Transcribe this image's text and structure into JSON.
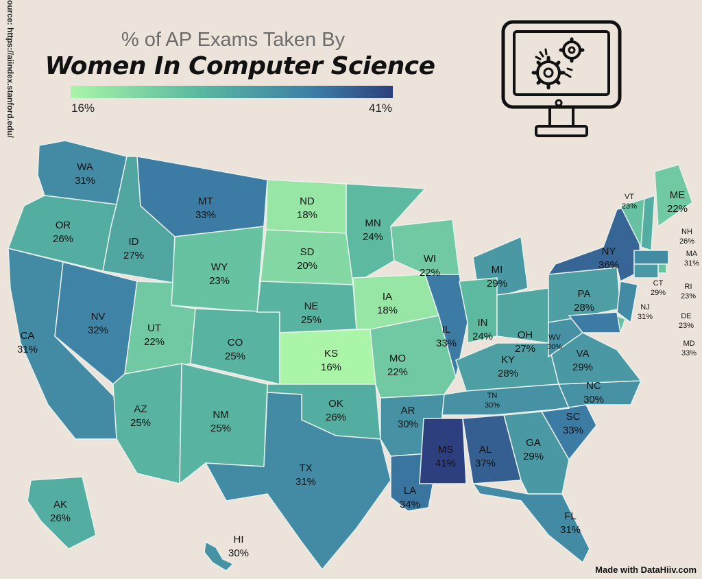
{
  "header": {
    "subtitle": "% of AP Exams Taken By",
    "title": "Women In Computer Science"
  },
  "legend": {
    "min_label": "16%",
    "max_label": "41%",
    "min_value": 16,
    "max_value": 41,
    "colors": [
      "#aaf5a8",
      "#5ab8a0",
      "#3d7fa6",
      "#2d3f7e"
    ]
  },
  "source_text": "Source: https://aiindex.stanford.edu/",
  "credit_text": "Made with DataHiiv.com",
  "icon": "computer-monitor-gears-icon",
  "map_data": {
    "metric": "% of AP Exams Taken By Women In Computer Science",
    "states": [
      {
        "code": "WA",
        "label": "31%",
        "value": 31
      },
      {
        "code": "OR",
        "label": "26%",
        "value": 26
      },
      {
        "code": "CA",
        "label": "31%",
        "value": 31
      },
      {
        "code": "NV",
        "label": "32%",
        "value": 32
      },
      {
        "code": "ID",
        "label": "27%",
        "value": 27
      },
      {
        "code": "MT",
        "label": "33%",
        "value": 33
      },
      {
        "code": "WY",
        "label": "23%",
        "value": 23
      },
      {
        "code": "UT",
        "label": "22%",
        "value": 22
      },
      {
        "code": "AZ",
        "label": "25%",
        "value": 25
      },
      {
        "code": "CO",
        "label": "25%",
        "value": 25
      },
      {
        "code": "NM",
        "label": "25%",
        "value": 25
      },
      {
        "code": "ND",
        "label": "18%",
        "value": 18
      },
      {
        "code": "SD",
        "label": "20%",
        "value": 20
      },
      {
        "code": "NE",
        "label": "25%",
        "value": 25
      },
      {
        "code": "KS",
        "label": "16%",
        "value": 16
      },
      {
        "code": "OK",
        "label": "26%",
        "value": 26
      },
      {
        "code": "TX",
        "label": "31%",
        "value": 31
      },
      {
        "code": "MN",
        "label": "24%",
        "value": 24
      },
      {
        "code": "IA",
        "label": "18%",
        "value": 18
      },
      {
        "code": "MO",
        "label": "22%",
        "value": 22
      },
      {
        "code": "AR",
        "label": "30%",
        "value": 30
      },
      {
        "code": "LA",
        "label": "34%",
        "value": 34
      },
      {
        "code": "WI",
        "label": "22%",
        "value": 22
      },
      {
        "code": "IL",
        "label": "33%",
        "value": 33
      },
      {
        "code": "MI",
        "label": "29%",
        "value": 29
      },
      {
        "code": "IN",
        "label": "24%",
        "value": 24
      },
      {
        "code": "OH",
        "label": "27%",
        "value": 27
      },
      {
        "code": "KY",
        "label": "28%",
        "value": 28
      },
      {
        "code": "TN",
        "label": "30%",
        "value": 30
      },
      {
        "code": "MS",
        "label": "41%",
        "value": 41
      },
      {
        "code": "AL",
        "label": "37%",
        "value": 37
      },
      {
        "code": "GA",
        "label": "29%",
        "value": 29
      },
      {
        "code": "FL",
        "label": "31%",
        "value": 31
      },
      {
        "code": "SC",
        "label": "33%",
        "value": 33
      },
      {
        "code": "NC",
        "label": "30%",
        "value": 30
      },
      {
        "code": "VA",
        "label": "29%",
        "value": 29
      },
      {
        "code": "WV",
        "label": "30%",
        "value": 30
      },
      {
        "code": "PA",
        "label": "28%",
        "value": 28
      },
      {
        "code": "NY",
        "label": "36%",
        "value": 36
      },
      {
        "code": "VT",
        "label": "23%",
        "value": 23
      },
      {
        "code": "NH",
        "label": "26%",
        "value": 26
      },
      {
        "code": "ME",
        "label": "22%",
        "value": 22
      },
      {
        "code": "MA",
        "label": "31%",
        "value": 31
      },
      {
        "code": "RI",
        "label": "23%",
        "value": 23
      },
      {
        "code": "CT",
        "label": "29%",
        "value": 29
      },
      {
        "code": "NJ",
        "label": "31%",
        "value": 31
      },
      {
        "code": "DE",
        "label": "23%",
        "value": 23
      },
      {
        "code": "MD",
        "label": "33%",
        "value": 33
      },
      {
        "code": "AK",
        "label": "26%",
        "value": 26
      },
      {
        "code": "HI",
        "label": "30%",
        "value": 30
      }
    ]
  }
}
